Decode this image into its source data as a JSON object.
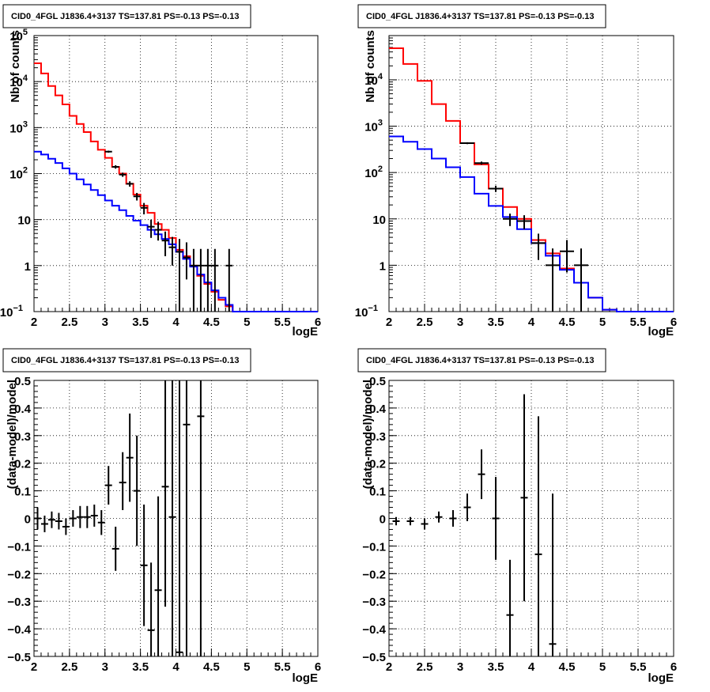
{
  "chart_data": [
    {
      "type": "histogram",
      "title": "CID0_4FGL J1836.4+3137 TS=137.81 PS=-0.13 PS=-0.13",
      "xlabel": "logE",
      "ylabel": "Nb of counts",
      "xlim": [
        2,
        6
      ],
      "ylim": [
        0.1,
        100000
      ],
      "yscale": "log",
      "grid": true,
      "x_ticks": [
        "2",
        "2.5",
        "3",
        "3.5",
        "4",
        "4.5",
        "5",
        "5.5",
        "6"
      ],
      "y_ticks": [
        {
          "v": 0.1,
          "label": "10",
          "sup": "−1"
        },
        {
          "v": 1,
          "label": "1",
          "sup": ""
        },
        {
          "v": 10,
          "label": "10",
          "sup": ""
        },
        {
          "v": 100,
          "label": "10",
          "sup": "2"
        },
        {
          "v": 1000,
          "label": "10",
          "sup": "3"
        },
        {
          "v": 10000,
          "label": "10",
          "sup": "4"
        },
        {
          "v": 100000,
          "label": "10",
          "sup": "5"
        }
      ],
      "bin_edges": [
        2.0,
        2.1,
        2.2,
        2.3,
        2.4,
        2.5,
        2.6,
        2.7,
        2.8,
        2.9,
        3.0,
        3.1,
        3.2,
        3.3,
        3.4,
        3.5,
        3.6,
        3.7,
        3.8,
        3.9,
        4.0,
        4.1,
        4.2,
        4.3,
        4.4,
        4.5,
        4.6,
        4.7,
        4.8,
        4.9,
        5.0,
        5.1,
        5.2,
        5.3,
        5.4,
        5.5,
        5.6,
        5.7,
        5.8,
        5.9,
        6.0
      ],
      "series": [
        {
          "color": "#ff0000",
          "values": [
            25000,
            15000,
            8000,
            5000,
            3200,
            1800,
            1200,
            800,
            500,
            330,
            220,
            140,
            100,
            60,
            35,
            20,
            14,
            8,
            6,
            4,
            2.2,
            1.6,
            1,
            0.6,
            0.4,
            0.27,
            0.18,
            0.13,
            0.1,
            0.1,
            0.1,
            0.1,
            0.1,
            0.1,
            0.1,
            0.1,
            0.1,
            0.1,
            0.1,
            0.1
          ]
        },
        {
          "color": "#0000ff",
          "values": [
            300,
            260,
            210,
            170,
            130,
            100,
            75,
            58,
            44,
            34,
            26,
            20,
            16,
            12,
            9.5,
            7.6,
            6,
            4.8,
            3.8,
            2.9,
            2,
            1.4,
            0.95,
            0.64,
            0.43,
            0.29,
            0.2,
            0.14,
            0.1,
            0.1,
            0.1,
            0.1,
            0.1,
            0.1,
            0.1,
            0.1,
            0.1,
            0.1,
            0.1,
            0.1
          ]
        }
      ],
      "points": [
        {
          "x": 3.05,
          "y": 300,
          "lo": 285,
          "hi": 315
        },
        {
          "x": 3.15,
          "y": 140,
          "lo": 128,
          "hi": 152
        },
        {
          "x": 3.25,
          "y": 95,
          "lo": 85,
          "hi": 105
        },
        {
          "x": 3.35,
          "y": 60,
          "lo": 52,
          "hi": 68
        },
        {
          "x": 3.45,
          "y": 32,
          "lo": 26,
          "hi": 38
        },
        {
          "x": 3.55,
          "y": 18,
          "lo": 13,
          "hi": 23
        },
        {
          "x": 3.65,
          "y": 7,
          "lo": 4,
          "hi": 10
        },
        {
          "x": 3.75,
          "y": 6,
          "lo": 3.5,
          "hi": 9
        },
        {
          "x": 3.85,
          "y": 3.5,
          "lo": 1.6,
          "hi": 5.5
        },
        {
          "x": 3.95,
          "y": 2.5,
          "lo": 1,
          "hi": 4.2
        },
        {
          "x": 4.05,
          "y": 2,
          "lo": 0.1,
          "hi": 3.8
        },
        {
          "x": 4.15,
          "y": 1.5,
          "lo": 0.5,
          "hi": 3.2
        },
        {
          "x": 4.25,
          "y": 1,
          "lo": 0.1,
          "hi": 2.3
        },
        {
          "x": 4.35,
          "y": 1,
          "lo": 0.1,
          "hi": 2.3
        },
        {
          "x": 4.45,
          "y": 1,
          "lo": 0.1,
          "hi": 2.3
        },
        {
          "x": 4.55,
          "y": 1,
          "lo": 0.1,
          "hi": 2.3
        },
        {
          "x": 4.75,
          "y": 1,
          "lo": 0.1,
          "hi": 2.3
        }
      ]
    },
    {
      "type": "histogram",
      "title": "CID0_4FGL J1836.4+3137 TS=137.81 PS=-0.13 PS=-0.13",
      "xlabel": "logE",
      "ylabel": "Nb of counts",
      "xlim": [
        2,
        6
      ],
      "ylim": [
        0.1,
        90000
      ],
      "yscale": "log",
      "grid": true,
      "x_ticks": [
        "2",
        "2.5",
        "3",
        "3.5",
        "4",
        "4.5",
        "5",
        "5.5",
        "6"
      ],
      "y_ticks": [
        {
          "v": 0.1,
          "label": "10",
          "sup": "−1"
        },
        {
          "v": 1,
          "label": "1",
          "sup": ""
        },
        {
          "v": 10,
          "label": "10",
          "sup": ""
        },
        {
          "v": 100,
          "label": "10",
          "sup": "2"
        },
        {
          "v": 1000,
          "label": "10",
          "sup": "3"
        },
        {
          "v": 10000,
          "label": "10",
          "sup": "4"
        }
      ],
      "bin_edges": [
        2.0,
        2.2,
        2.4,
        2.6,
        2.8,
        3.0,
        3.2,
        3.4,
        3.6,
        3.8,
        4.0,
        4.2,
        4.4,
        4.6,
        4.8,
        5.0,
        5.2,
        5.4,
        5.6,
        5.8,
        6.0
      ],
      "series": [
        {
          "color": "#ff0000",
          "values": [
            48000,
            22000,
            9500,
            3000,
            1300,
            430,
            150,
            45,
            18,
            10,
            3.5,
            1.8,
            0.85,
            0.42,
            0.2,
            0.11,
            0.1,
            0.1,
            0.1,
            0.1
          ]
        },
        {
          "color": "#0000ff",
          "values": [
            600,
            460,
            320,
            200,
            130,
            80,
            35,
            19,
            11,
            6,
            3,
            1.6,
            0.8,
            0.42,
            0.2,
            0.11,
            0.1,
            0.1,
            0.1,
            0.1
          ]
        }
      ],
      "points": [
        {
          "x": 3.1,
          "y": 430,
          "lo": 410,
          "hi": 450
        },
        {
          "x": 3.3,
          "y": 160,
          "lo": 148,
          "hi": 172
        },
        {
          "x": 3.5,
          "y": 45,
          "lo": 38,
          "hi": 52
        },
        {
          "x": 3.7,
          "y": 10,
          "lo": 7,
          "hi": 13
        },
        {
          "x": 3.9,
          "y": 9,
          "lo": 6,
          "hi": 12
        },
        {
          "x": 4.1,
          "y": 3,
          "lo": 1.3,
          "hi": 4.8
        },
        {
          "x": 4.3,
          "y": 1,
          "lo": 0.1,
          "hi": 2.3
        },
        {
          "x": 4.5,
          "y": 2,
          "lo": 0.7,
          "hi": 3.5
        },
        {
          "x": 4.7,
          "y": 1,
          "lo": 0.1,
          "hi": 2.3
        }
      ]
    },
    {
      "type": "scatter",
      "title": "CID0_4FGL J1836.4+3137 TS=137.81 PS=-0.13 PS=-0.13",
      "xlabel": "logE",
      "ylabel": "(data-model)/model",
      "xlim": [
        2,
        6
      ],
      "ylim": [
        -0.5,
        0.5
      ],
      "grid": true,
      "x_ticks": [
        "2",
        "2.5",
        "3",
        "3.5",
        "4",
        "4.5",
        "5",
        "5.5",
        "6"
      ],
      "y_ticks": [
        "−0.5",
        "−0.4",
        "−0.3",
        "−0.2",
        "−0.1",
        "0",
        "0.1",
        "0.2",
        "0.3",
        "0.4",
        "0.5"
      ],
      "points": [
        {
          "x": 2.05,
          "y": 0.0,
          "lo": -0.04,
          "hi": 0.04
        },
        {
          "x": 2.15,
          "y": -0.02,
          "lo": -0.05,
          "hi": 0.01
        },
        {
          "x": 2.25,
          "y": -0.005,
          "lo": -0.035,
          "hi": 0.025
        },
        {
          "x": 2.35,
          "y": -0.01,
          "lo": -0.04,
          "hi": 0.02
        },
        {
          "x": 2.45,
          "y": -0.03,
          "lo": -0.06,
          "hi": 0.0
        },
        {
          "x": 2.55,
          "y": 0.0,
          "lo": -0.03,
          "hi": 0.03
        },
        {
          "x": 2.65,
          "y": 0.005,
          "lo": -0.035,
          "hi": 0.045
        },
        {
          "x": 2.75,
          "y": 0.005,
          "lo": -0.035,
          "hi": 0.045
        },
        {
          "x": 2.85,
          "y": 0.01,
          "lo": -0.03,
          "hi": 0.05
        },
        {
          "x": 2.95,
          "y": -0.015,
          "lo": -0.06,
          "hi": 0.03
        },
        {
          "x": 3.05,
          "y": 0.12,
          "lo": 0.05,
          "hi": 0.19
        },
        {
          "x": 3.15,
          "y": -0.11,
          "lo": -0.19,
          "hi": -0.03
        },
        {
          "x": 3.25,
          "y": 0.13,
          "lo": 0.03,
          "hi": 0.24
        },
        {
          "x": 3.35,
          "y": 0.22,
          "lo": 0.06,
          "hi": 0.38
        },
        {
          "x": 3.45,
          "y": 0.1,
          "lo": -0.1,
          "hi": 0.3
        },
        {
          "x": 3.55,
          "y": -0.17,
          "lo": -0.39,
          "hi": 0.05
        },
        {
          "x": 3.65,
          "y": -0.405,
          "lo": -0.5,
          "hi": -0.16
        },
        {
          "x": 3.75,
          "y": -0.26,
          "lo": -0.5,
          "hi": 0.08
        },
        {
          "x": 3.85,
          "y": 0.115,
          "lo": -0.32,
          "hi": 0.5
        },
        {
          "x": 3.95,
          "y": 0.005,
          "lo": -0.5,
          "hi": 0.5
        },
        {
          "x": 4.05,
          "y": -0.485,
          "lo": -0.5,
          "hi": 0.5
        },
        {
          "x": 4.15,
          "y": 0.34,
          "lo": -0.5,
          "hi": 0.5
        },
        {
          "x": 4.35,
          "y": 0.37,
          "lo": -0.5,
          "hi": 0.5
        }
      ]
    },
    {
      "type": "scatter",
      "title": "CID0_4FGL J1836.4+3137 TS=137.81 PS=-0.13 PS=-0.13",
      "xlabel": "logE",
      "ylabel": "(data-model)/model",
      "xlim": [
        2,
        6
      ],
      "ylim": [
        -0.5,
        0.5
      ],
      "grid": true,
      "x_ticks": [
        "2",
        "2.5",
        "3",
        "3.5",
        "4",
        "4.5",
        "5",
        "5.5",
        "6"
      ],
      "y_ticks": [
        "−0.5",
        "−0.4",
        "−0.3",
        "−0.2",
        "−0.1",
        "0",
        "0.1",
        "0.2",
        "0.3",
        "0.4",
        "0.5"
      ],
      "points": [
        {
          "x": 2.1,
          "y": -0.01,
          "lo": -0.025,
          "hi": 0.005
        },
        {
          "x": 2.3,
          "y": -0.01,
          "lo": -0.025,
          "hi": 0.005
        },
        {
          "x": 2.5,
          "y": -0.02,
          "lo": -0.04,
          "hi": 0.0
        },
        {
          "x": 2.7,
          "y": 0.005,
          "lo": -0.015,
          "hi": 0.025
        },
        {
          "x": 2.9,
          "y": 0.0,
          "lo": -0.03,
          "hi": 0.03
        },
        {
          "x": 3.1,
          "y": 0.04,
          "lo": -0.01,
          "hi": 0.09
        },
        {
          "x": 3.3,
          "y": 0.16,
          "lo": 0.07,
          "hi": 0.25
        },
        {
          "x": 3.5,
          "y": 0.0,
          "lo": -0.15,
          "hi": 0.15
        },
        {
          "x": 3.7,
          "y": -0.35,
          "lo": -0.5,
          "hi": -0.15
        },
        {
          "x": 3.9,
          "y": 0.075,
          "lo": -0.3,
          "hi": 0.45
        },
        {
          "x": 4.1,
          "y": -0.13,
          "lo": -0.5,
          "hi": 0.37
        },
        {
          "x": 4.3,
          "y": -0.455,
          "lo": -0.5,
          "hi": 0.09
        }
      ]
    }
  ]
}
